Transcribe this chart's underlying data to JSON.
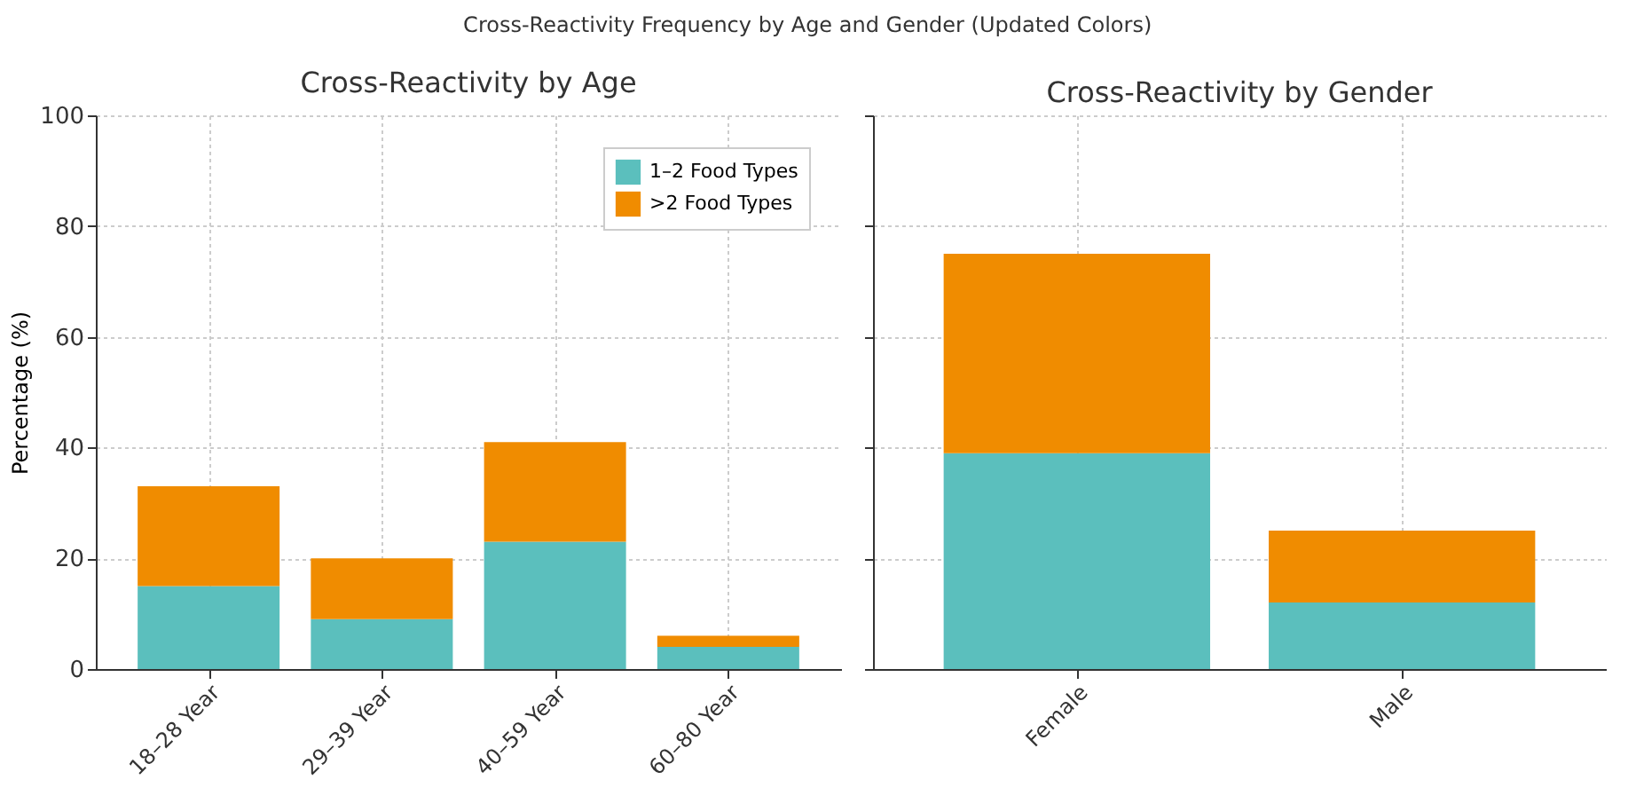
{
  "chart_data": [
    {
      "type": "bar",
      "title": "Cross-Reactivity by Age",
      "ylabel": "Percentage (%)",
      "stacked": true,
      "categories": [
        "18–28 Year",
        "29–39 Year",
        "40–59 Year",
        "60–80 Year"
      ],
      "series": [
        {
          "name": "1–2 Food Types",
          "color": "#5bbfbd",
          "values": [
            15,
            9,
            23,
            4
          ]
        },
        {
          "name": ">2 Food Types",
          "color": "#f08c00",
          "values": [
            18,
            11,
            18,
            2
          ]
        }
      ],
      "ylim": [
        0,
        100
      ],
      "yticks": [
        0,
        20,
        40,
        60,
        80,
        100
      ],
      "grid": true,
      "legend": "top right",
      "annotations": [
        "Cross-Reactivity Frequency by Age and Gender (Updated Colors)"
      ]
    },
    {
      "type": "bar",
      "title": "Cross-Reactivity by Gender",
      "stacked": true,
      "categories": [
        "Female",
        "Male"
      ],
      "series": [
        {
          "color": "#5bbfbd",
          "values": [
            39,
            12
          ]
        },
        {
          "color": "#f08c00",
          "values": [
            36,
            13
          ]
        }
      ],
      "ylim": [
        0,
        100
      ],
      "yticks": [
        0,
        20,
        40,
        60,
        80,
        100
      ],
      "grid": true,
      "tick_labels": "x"
    }
  ]
}
